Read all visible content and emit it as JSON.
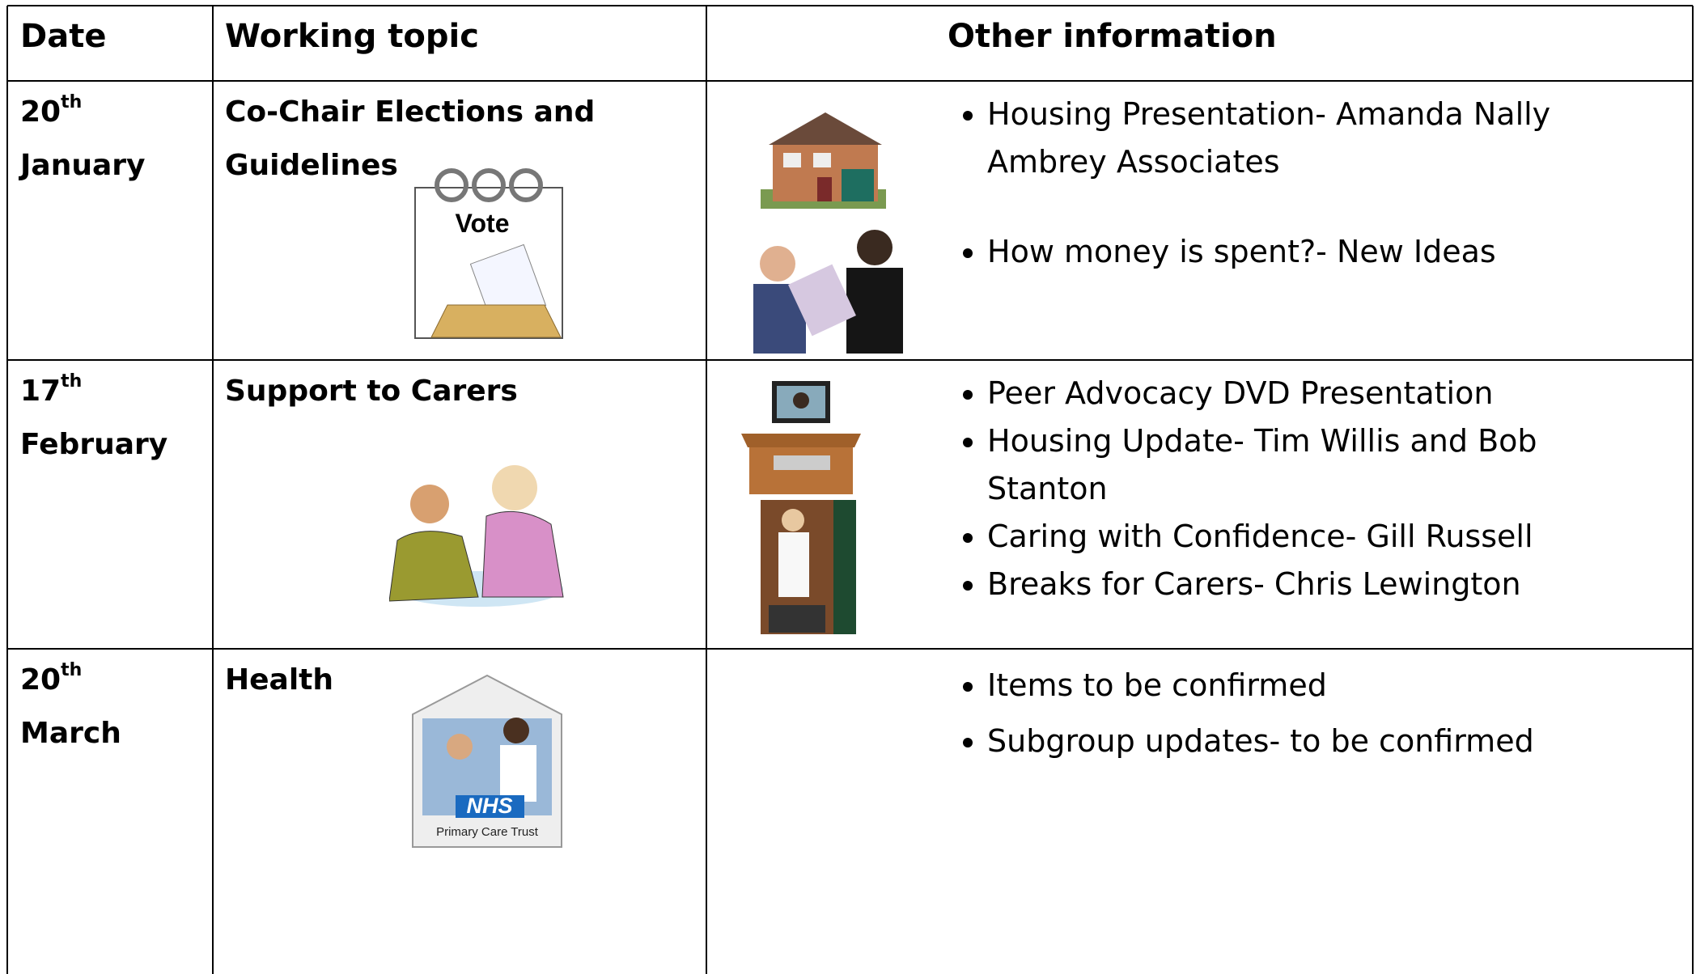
{
  "table": {
    "header": [
      "Date",
      "Working topic",
      "Other information"
    ],
    "rows": [
      {
        "date": {
          "day": "20",
          "suffix": "th",
          "month": "January"
        },
        "topic": "Co-Chair Elections and Guidelines",
        "image_text": [
          "Vote"
        ],
        "items": [
          "Housing Presentation- Amanda Nally Ambrey Associates",
          "How money is spent?- New Ideas"
        ]
      },
      {
        "date": {
          "day": "17",
          "suffix": "th",
          "month": "February"
        },
        "topic": "Support to Carers",
        "image_text": [],
        "items": [
          "Peer Advocacy DVD Presentation",
          "Housing Update- Tim Willis and Bob Stanton",
          "Caring with Confidence- Gill Russell",
          "Breaks for Carers- Chris Lewington"
        ]
      },
      {
        "date": {
          "day": "20",
          "suffix": "th",
          "month": "March"
        },
        "topic": "Health",
        "image_text": [
          "NHS",
          "Primary Care Trust"
        ],
        "items": [
          "Items to be confirmed",
          "Subgroup updates- to be confirmed"
        ]
      }
    ]
  }
}
